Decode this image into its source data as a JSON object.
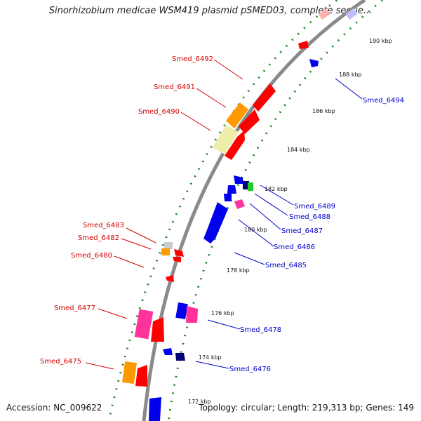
{
  "title": "Sinorhizobium medicae WSM419 plasmid pSMED03, complete seque...",
  "footer": {
    "accession": "Accession: NC_009622",
    "summary": "Topology: circular; Length: 219,313 bp; Genes: 149"
  },
  "colors": {
    "backbone": "#8a8a8a",
    "tick_track": "#1e8a1e",
    "red": "#ff0000",
    "orange": "#ff9900",
    "pale_yellow": "#eeeeaa",
    "magenta": "#ff3399",
    "blue": "#0000ee",
    "navy": "#000077",
    "green": "#22cc22",
    "grey": "#cccccc",
    "red_label": "#d40000",
    "blue_label": "#0000cc"
  },
  "position_labels": [
    "190 kbp",
    "188 kbp",
    "186 kbp",
    "184 kbp",
    "182 kbp",
    "180 kbp",
    "178 kbp",
    "176 kbp",
    "174 kbp",
    "172 kbp"
  ],
  "gene_labels": {
    "reverse": [
      "Smed_6492",
      "Smed_6491",
      "Smed_6490",
      "Smed_6483",
      "Smed_6482",
      "Smed_6480",
      "Smed_6477",
      "Smed_6475"
    ],
    "forward": [
      "Smed_6494",
      "Smed_6489",
      "Smed_6488",
      "Smed_6487",
      "Smed_6486",
      "Smed_6485",
      "Smed_6478",
      "Smed_6476"
    ]
  }
}
